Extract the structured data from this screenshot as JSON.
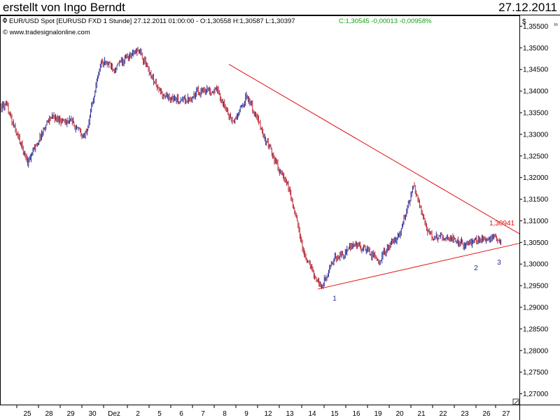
{
  "header": {
    "title": "erstellt von Ingo Berndt",
    "date": "27.12.2011"
  },
  "info": {
    "instrument": "EUR/USD Spot [EURUSD FXD  1 Stunde] 27.12.2011 01:00:00 - O:1,30558 H:1,30587 L:1,30397",
    "change": "C:1,30545 -0,00013 -0,00958%",
    "website": "© www.tradesignalonline.com",
    "currency_symbol": "$"
  },
  "colors": {
    "trendline": "#e01010",
    "bullish_candle": "#1a1a8c",
    "bearish_candle": "#b01020",
    "wave_label": "#1f1fa0",
    "change_text": "#12a012",
    "price_label": "#e01010"
  },
  "chart_data": {
    "type": "candlestick",
    "title": "EUR/USD Spot [EURUSD FXD  1 Stunde]",
    "timeframe": "1 Stunde",
    "ylim": [
      1.2675,
      1.3575
    ],
    "y_ticks": [
      "1,35500",
      "1,35000",
      "1,34500",
      "1,34000",
      "1,33500",
      "1,33000",
      "1,32500",
      "1,32000",
      "1,31500",
      "1,31000",
      "1,30500",
      "1,30000",
      "1,29500",
      "1,29000",
      "1,28500",
      "1,28000",
      "1,27500",
      "1,27000"
    ],
    "x_ticks": [
      "25",
      "28",
      "29",
      "30",
      "Dez",
      "2",
      "5",
      "6",
      "7",
      "8",
      "9",
      "12",
      "13",
      "14",
      "15",
      "16",
      "19",
      "20",
      "21",
      "22",
      "23",
      "26",
      "27"
    ],
    "approx_close_path": [
      {
        "date": "24.11",
        "price": 1.3365
      },
      {
        "date": "25.11",
        "price": 1.3235
      },
      {
        "date": "28.11",
        "price": 1.334
      },
      {
        "date": "29.11",
        "price": 1.333
      },
      {
        "date": "30.11",
        "price": 1.329
      },
      {
        "date": "30.11",
        "price": 1.347
      },
      {
        "date": "01.12",
        "price": 1.3455
      },
      {
        "date": "02.12",
        "price": 1.3495
      },
      {
        "date": "05.12",
        "price": 1.3395
      },
      {
        "date": "06.12",
        "price": 1.3375
      },
      {
        "date": "07.12",
        "price": 1.3405
      },
      {
        "date": "08.12",
        "price": 1.34
      },
      {
        "date": "08.12",
        "price": 1.3325
      },
      {
        "date": "09.12",
        "price": 1.339
      },
      {
        "date": "12.12",
        "price": 1.327
      },
      {
        "date": "13.12",
        "price": 1.3165
      },
      {
        "date": "14.12",
        "price": 1.302
      },
      {
        "date": "14.12",
        "price": 1.2945
      },
      {
        "date": "15.12",
        "price": 1.3015
      },
      {
        "date": "16.12",
        "price": 1.3045
      },
      {
        "date": "19.12",
        "price": 1.301
      },
      {
        "date": "20.12",
        "price": 1.307
      },
      {
        "date": "21.12",
        "price": 1.318
      },
      {
        "date": "21.12",
        "price": 1.306
      },
      {
        "date": "22.12",
        "price": 1.3065
      },
      {
        "date": "23.12",
        "price": 1.3045
      },
      {
        "date": "26.12",
        "price": 1.306
      },
      {
        "date": "27.12",
        "price": 1.3054
      }
    ],
    "trendlines": [
      {
        "name": "upper",
        "from": {
          "date": "08.12",
          "price": 1.3462
        },
        "to": {
          "date": "27.12",
          "price": 1.307
        }
      },
      {
        "name": "lower",
        "from": {
          "date": "14.12",
          "price": 1.2942
        },
        "to": {
          "date": "27.12",
          "price": 1.3048
        }
      }
    ],
    "annotations": [
      {
        "text": "1,30941",
        "price": 1.30941
      },
      {
        "text": "1",
        "date": "14.12",
        "price": 1.2935
      },
      {
        "text": "2",
        "date": "23.12",
        "price": 1.3005
      },
      {
        "text": "3",
        "date": "26.12",
        "price": 1.3018
      }
    ],
    "grid": false,
    "legend": "none"
  }
}
